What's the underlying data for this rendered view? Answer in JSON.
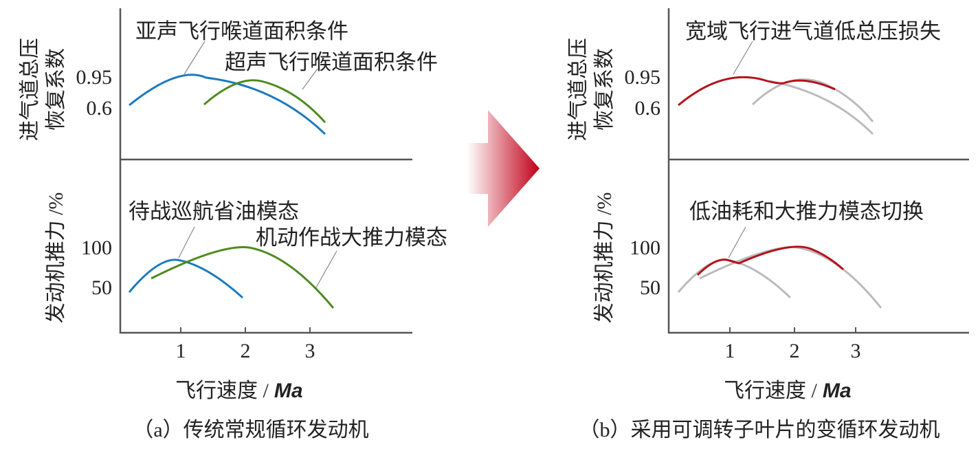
{
  "panels": [
    {
      "top": {
        "y_label_lines": [
          "进气道总压",
          "恢复系数"
        ],
        "y_ticks": [
          "0.95",
          "0.6"
        ],
        "annotations": [
          "亚声飞行喉道面积条件",
          "超声飞行喉道面积条件"
        ]
      },
      "bottom": {
        "y_label": "发动机推力 /%",
        "y_ticks": [
          "100",
          "50"
        ],
        "annotations": [
          "待战巡航省油模态",
          "机动作战大推力模态"
        ]
      },
      "x_ticks": [
        "1",
        "2",
        "3"
      ],
      "x_label": "飞行速度 /",
      "x_label_unit": "Ma",
      "caption": "（a）传统常规循环发动机"
    },
    {
      "top": {
        "y_label_lines": [
          "进气道总压",
          "恢复系数"
        ],
        "y_ticks": [
          "0.95",
          "0.6"
        ],
        "annotations": [
          "宽域飞行进气道低总压损失"
        ]
      },
      "bottom": {
        "y_label": "发动机推力 /%",
        "y_ticks": [
          "100",
          "50"
        ],
        "annotations": [
          "低油耗和大推力模态切换"
        ]
      },
      "x_ticks": [
        "1",
        "2",
        "3"
      ],
      "x_label": "飞行速度 /",
      "x_label_unit": "Ma",
      "caption": "（b）采用可调转子叶片的变循环发动机"
    }
  ]
}
